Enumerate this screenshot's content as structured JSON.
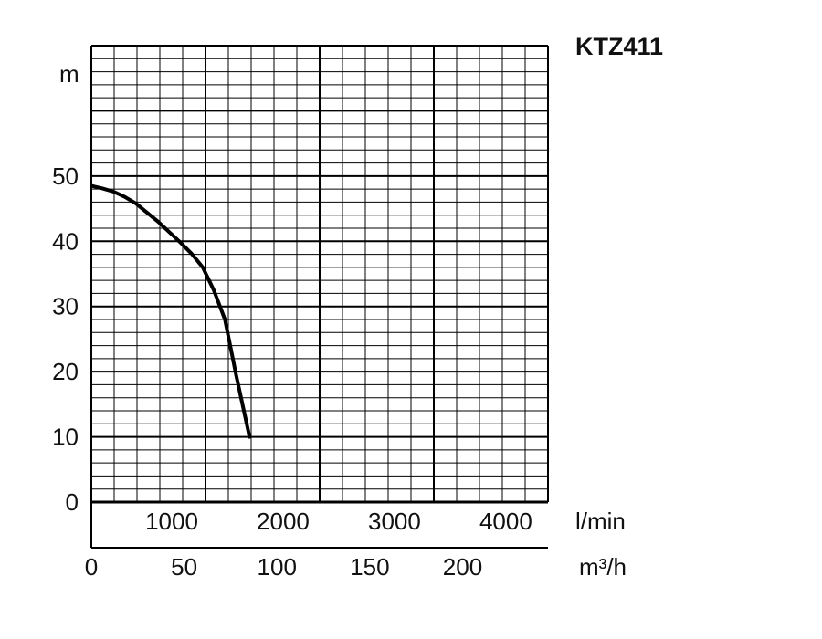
{
  "chart_data": {
    "type": "line",
    "title": "KTZ411",
    "ylabel": "m",
    "x_primary": {
      "unit": "l/min",
      "ticks": [
        "1000",
        "2000",
        "3000",
        "4000"
      ],
      "range": [
        0,
        4100
      ]
    },
    "x_secondary": {
      "unit": "m³/h",
      "ticks": [
        "0",
        "50",
        "100",
        "150",
        "200"
      ],
      "range": [
        0,
        246
      ]
    },
    "y": {
      "ticks": [
        "0",
        "10",
        "20",
        "30",
        "40",
        "50"
      ],
      "range": [
        0,
        70
      ]
    },
    "grid": true,
    "series": [
      {
        "x": [
          0,
          100,
          200,
          300,
          400,
          500,
          600,
          700,
          800,
          900,
          1000,
          1100,
          1200,
          1300,
          1420
        ],
        "y": [
          48.5,
          48.1,
          47.6,
          46.8,
          45.8,
          44.4,
          43.0,
          41.4,
          39.8,
          38.1,
          36.0,
          32.5,
          28.0,
          19.5,
          10.0
        ]
      }
    ]
  }
}
